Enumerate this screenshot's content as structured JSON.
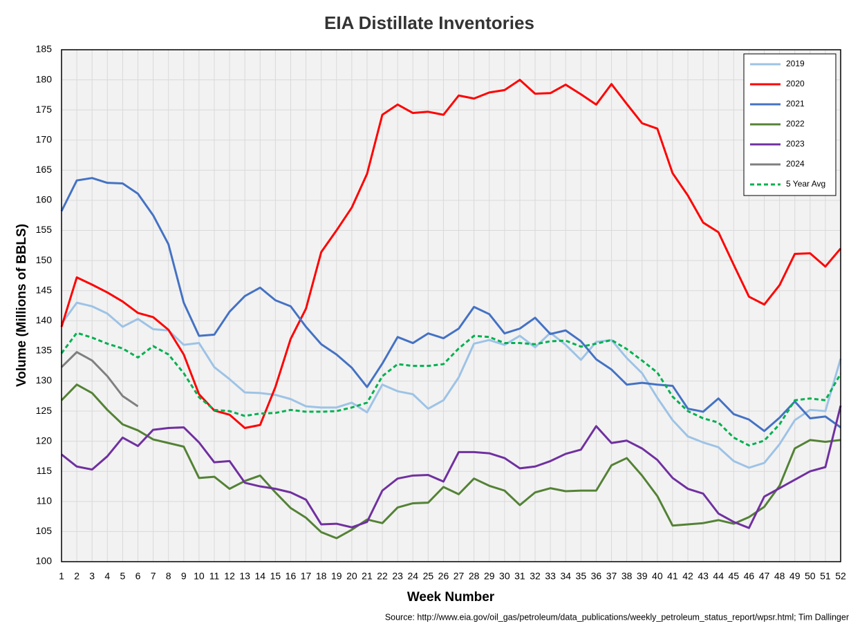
{
  "chart_data": {
    "type": "line",
    "title": "EIA Distillate Inventories",
    "x_label": "Week Number",
    "y_label": "Volume (Millions of BBLS)",
    "source": "Source: http://www.eia.gov/oil_gas/petroleum/data_publications/weekly_petroleum_status_report/wpsr.html; Tim Dallinger",
    "x": [
      1,
      2,
      3,
      4,
      5,
      6,
      7,
      8,
      9,
      10,
      11,
      12,
      13,
      14,
      15,
      16,
      17,
      18,
      19,
      20,
      21,
      22,
      23,
      24,
      25,
      26,
      27,
      28,
      29,
      30,
      31,
      32,
      33,
      34,
      35,
      36,
      37,
      38,
      39,
      40,
      41,
      42,
      43,
      44,
      45,
      46,
      47,
      48,
      49,
      50,
      51,
      52
    ],
    "xlim": [
      1,
      52
    ],
    "xticks": [
      1,
      2,
      3,
      4,
      5,
      6,
      7,
      8,
      9,
      10,
      11,
      12,
      13,
      14,
      15,
      16,
      17,
      18,
      19,
      20,
      21,
      22,
      23,
      24,
      25,
      26,
      27,
      28,
      29,
      30,
      31,
      32,
      33,
      34,
      35,
      36,
      37,
      38,
      39,
      40,
      41,
      42,
      43,
      44,
      45,
      46,
      47,
      48,
      49,
      50,
      51,
      52
    ],
    "ylim": [
      100,
      185
    ],
    "yticks": [
      100,
      105,
      110,
      115,
      120,
      125,
      130,
      135,
      140,
      145,
      150,
      155,
      160,
      165,
      170,
      175,
      180,
      185
    ],
    "grid": true,
    "legend": "top-right",
    "series": [
      {
        "name": "2019",
        "color": "#9dc3e6",
        "style": "solid",
        "values": [
          139.5,
          143,
          142.4,
          141.2,
          139,
          140.3,
          138.6,
          138.4,
          136,
          136.3,
          132.3,
          130.3,
          128.1,
          128,
          127.7,
          127,
          125.8,
          125.6,
          125.6,
          126.4,
          124.8,
          129.4,
          128.3,
          127.8,
          125.4,
          126.8,
          130.6,
          136.2,
          136.8,
          136,
          137.5,
          135.6,
          138,
          136,
          133.5,
          136.5,
          136.8,
          133.8,
          131.3,
          127.2,
          123.5,
          120.8,
          119.8,
          119,
          116.7,
          115.6,
          116.4,
          119.5,
          123.5,
          125.2,
          125,
          133.7
        ]
      },
      {
        "name": "2020",
        "color": "#ff0000",
        "style": "solid",
        "values": [
          139,
          147.2,
          146,
          144.7,
          143.2,
          141.3,
          140.6,
          138.5,
          134.4,
          127.8,
          125.1,
          124.4,
          122.2,
          122.7,
          129,
          137,
          142,
          151.4,
          155,
          158.8,
          164.4,
          174.2,
          175.9,
          174.5,
          174.7,
          174.2,
          177.4,
          176.9,
          177.9,
          178.3,
          180,
          177.7,
          177.8,
          179.2,
          177.6,
          175.9,
          179.3,
          176,
          172.8,
          171.9,
          164.5,
          160.8,
          156.3,
          154.7,
          149.3,
          144,
          142.7,
          145.9,
          151.1,
          151.2,
          149,
          152
        ]
      },
      {
        "name": "2021",
        "color": "#4472c4",
        "style": "solid",
        "values": [
          158.2,
          163.3,
          163.7,
          162.9,
          162.8,
          161.1,
          157.5,
          152.7,
          143,
          137.5,
          137.7,
          141.5,
          144.1,
          145.5,
          143.4,
          142.4,
          139,
          136.1,
          134.4,
          132.2,
          129,
          132.9,
          137.3,
          136.3,
          137.9,
          137.1,
          138.7,
          142.3,
          141.1,
          137.9,
          138.7,
          140.5,
          137.8,
          138.4,
          136.6,
          133.6,
          131.9,
          129.4,
          129.7,
          129.4,
          129.2,
          125.4,
          124.9,
          127.1,
          124.5,
          123.6,
          121.7,
          123.9,
          126.6,
          123.8,
          124.1,
          122.3
        ]
      },
      {
        "name": "2022",
        "color": "#548235",
        "style": "solid",
        "values": [
          126.8,
          129.4,
          128,
          125.2,
          122.8,
          121.8,
          120.3,
          119.7,
          119.1,
          113.9,
          114.1,
          112.1,
          113.4,
          114.3,
          111.5,
          108.9,
          107.3,
          104.9,
          103.9,
          105.3,
          107,
          106.4,
          109,
          109.7,
          109.8,
          112.4,
          111.2,
          113.8,
          112.6,
          111.8,
          109.4,
          111.5,
          112.2,
          111.7,
          111.8,
          111.8,
          116,
          117.2,
          114.3,
          110.9,
          106,
          106.2,
          106.4,
          106.9,
          106.3,
          107.4,
          109.1,
          112.6,
          118.8,
          120.2,
          119.9,
          120.2
        ]
      },
      {
        "name": "2023",
        "color": "#7030a0",
        "style": "solid",
        "values": [
          117.8,
          115.8,
          115.3,
          117.5,
          120.6,
          119.2,
          121.9,
          122.2,
          122.3,
          119.8,
          116.5,
          116.7,
          113.1,
          112.5,
          112.1,
          111.5,
          110.3,
          106.2,
          106.3,
          105.7,
          106.6,
          111.8,
          113.8,
          114.3,
          114.4,
          113.3,
          118.2,
          118.2,
          118,
          117.2,
          115.5,
          115.8,
          116.7,
          117.9,
          118.6,
          122.5,
          119.7,
          120.1,
          118.8,
          116.9,
          113.9,
          112.1,
          111.3,
          108,
          106.6,
          105.6,
          110.8,
          112.2,
          113.6,
          115,
          115.7,
          125.9
        ]
      },
      {
        "name": "2024",
        "color": "#7f7f7f",
        "style": "solid",
        "values": [
          132.3,
          134.8,
          133.4,
          130.8,
          127.5,
          125.8,
          null,
          null,
          null,
          null,
          null,
          null,
          null,
          null,
          null,
          null,
          null,
          null,
          null,
          null,
          null,
          null,
          null,
          null,
          null,
          null,
          null,
          null,
          null,
          null,
          null,
          null,
          null,
          null,
          null,
          null,
          null,
          null,
          null,
          null,
          null,
          null,
          null,
          null,
          null,
          null,
          null,
          null,
          null,
          null,
          null,
          null
        ]
      },
      {
        "name": "5 Year Avg",
        "color": "#00b050",
        "style": "dashed",
        "values": [
          134.6,
          138,
          137.2,
          136.2,
          135.4,
          133.9,
          135.8,
          134.4,
          131.3,
          127.3,
          125.2,
          125,
          124.2,
          124.6,
          124.7,
          125.2,
          124.9,
          124.9,
          125,
          125.6,
          126.4,
          130.8,
          132.8,
          132.5,
          132.5,
          132.8,
          135.4,
          137.5,
          137.3,
          136.3,
          136.3,
          136.1,
          136.6,
          136.7,
          135.7,
          136.2,
          136.8,
          135.3,
          133.4,
          131.4,
          127.4,
          125,
          123.8,
          123.1,
          120.6,
          119.3,
          120.1,
          122.8,
          126.8,
          127.1,
          126.8,
          131.2
        ]
      }
    ]
  }
}
